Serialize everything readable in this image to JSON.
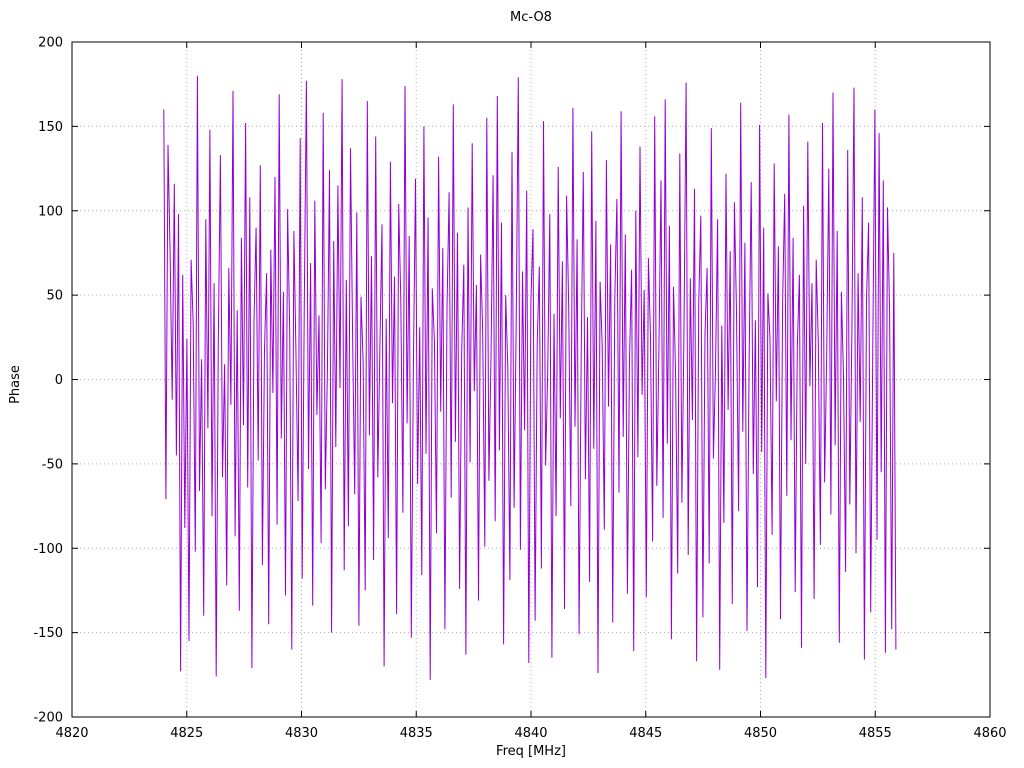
{
  "page": {
    "background": "#ffffff"
  },
  "chart_data": {
    "type": "line",
    "title": "Mc-O8",
    "xlabel": "Freq [MHz]",
    "ylabel": "Phase",
    "xlim": [
      4820,
      4860
    ],
    "ylim": [
      -200,
      200
    ],
    "xticks": [
      4820,
      4825,
      4830,
      4835,
      4840,
      4845,
      4850,
      4855,
      4860
    ],
    "yticks": [
      -200,
      -150,
      -100,
      -50,
      0,
      50,
      100,
      150,
      200
    ],
    "grid": true,
    "grid_style": "dotted",
    "grid_color": "#b0b0b0",
    "legend": "none",
    "series": [
      {
        "name": "phase",
        "color": "#9400d3",
        "x_range": [
          4824.0,
          4855.9
        ],
        "values": [
          160,
          -71,
          139,
          75,
          -12,
          116,
          -45,
          98,
          -173,
          62,
          -88,
          24,
          -155,
          71,
          33,
          -102,
          180,
          -66,
          12,
          -140,
          95,
          -29,
          148,
          -81,
          57,
          -176,
          22,
          133,
          -58,
          9,
          -122,
          66,
          -15,
          171,
          -93,
          41,
          -137,
          84,
          -27,
          152,
          -64,
          108,
          -171,
          35,
          90,
          -48,
          127,
          -110,
          18,
          63,
          -145,
          77,
          -8,
          120,
          -86,
          169,
          -35,
          52,
          -128,
          101,
          29,
          -160,
          88,
          14,
          -72,
          143,
          -118,
          45,
          177,
          -53,
          69,
          -134,
          106,
          -21,
          38,
          -97,
          158,
          -65,
          5,
          124,
          -150,
          82,
          -40,
          115,
          -5,
          178,
          -113,
          59,
          -87,
          137,
          26,
          -68,
          99,
          -146,
          49,
          11,
          -125,
          165,
          -33,
          73,
          -107,
          144,
          -58,
          19,
          92,
          -170,
          36,
          -94,
          129,
          -14,
          61,
          -139,
          104,
          47,
          -79,
          174,
          -26,
          85,
          -153,
          8,
          119,
          -62,
          31,
          -116,
          150,
          -44,
          96,
          -178,
          54,
          23,
          -91,
          132,
          -19,
          78,
          -148,
          42,
          111,
          -70,
          163,
          -37,
          87,
          -124,
          16,
          68,
          -163,
          102,
          -49,
          140,
          -7,
          56,
          -131,
          74,
          28,
          -99,
          155,
          -60,
          13,
          121,
          -84,
          168,
          -42,
          93,
          -157,
          50,
          7,
          -119,
          135,
          -76,
          34,
          179,
          -101,
          64,
          -30,
          112,
          -168,
          46,
          89,
          -143,
          21,
          67,
          -112,
          153,
          -51,
          4,
          98,
          -165,
          39,
          -81,
          126,
          -23,
          70,
          -136,
          109,
          43,
          -75,
          161,
          -28,
          83,
          -151,
          15,
          123,
          -59,
          37,
          -120,
          147,
          -41,
          94,
          -174,
          58,
          20,
          -89,
          130,
          -16,
          80,
          -144,
          48,
          107,
          -67,
          159,
          -34,
          86,
          -127,
          12,
          65,
          -161,
          100,
          -46,
          138,
          -9,
          53,
          -129,
          72,
          25,
          -96,
          156,
          -63,
          17,
          118,
          -82,
          166,
          -38,
          91,
          -154,
          55,
          3,
          -115,
          134,
          -73,
          30,
          176,
          -104,
          60,
          -24,
          113,
          -167,
          44,
          97,
          -141,
          27,
          66,
          -109,
          149,
          -47,
          6,
          95,
          -172,
          32,
          -85,
          122,
          -18,
          76,
          -133,
          105,
          40,
          -78,
          164,
          -31,
          81,
          -149,
          10,
          117,
          -56,
          35,
          -123,
          151,
          -43,
          90,
          -177,
          51,
          24,
          -92,
          128,
          -13,
          79,
          -142,
          45,
          110,
          -69,
          157,
          -36,
          84,
          -126,
          19,
          62,
          -159,
          103,
          -50,
          141,
          -4,
          57,
          -130,
          71,
          22,
          -98,
          152,
          -61,
          14,
          125,
          -80,
          170,
          -39,
          88,
          -156,
          52,
          2,
          -114,
          136,
          -74,
          29,
          173,
          -103,
          63,
          -25,
          108,
          -166,
          47,
          93,
          -138,
          20,
          160,
          -95,
          146,
          -55,
          118,
          -162,
          102,
          40,
          -148,
          75,
          -160
        ]
      }
    ]
  }
}
